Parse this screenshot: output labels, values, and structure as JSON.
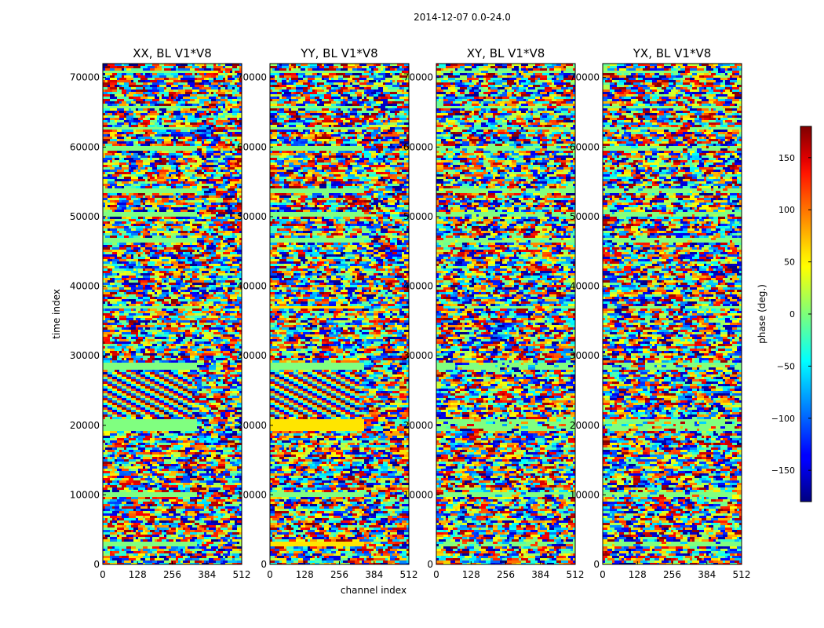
{
  "chart_data": {
    "type": "heatmap",
    "suptitle": "2014-12-07 0.0-24.0",
    "xlabel": "channel index",
    "ylabel": "time index",
    "xlim": [
      0,
      512
    ],
    "ylim": [
      0,
      72000
    ],
    "xticks": [
      0,
      128,
      256,
      384,
      512
    ],
    "yticks": [
      0,
      10000,
      20000,
      30000,
      40000,
      50000,
      60000,
      70000
    ],
    "panels": [
      {
        "title": "XX, BL V1*V8"
      },
      {
        "title": "YY, BL V1*V8"
      },
      {
        "title": "XY, BL V1*V8"
      },
      {
        "title": "YX, BL V1*V8"
      }
    ],
    "colorbar": {
      "label": "phase (deg.)",
      "range": [
        -180,
        180
      ],
      "ticks": [
        -150,
        -100,
        -50,
        0,
        50,
        100,
        150
      ],
      "colormap": "jet"
    }
  }
}
